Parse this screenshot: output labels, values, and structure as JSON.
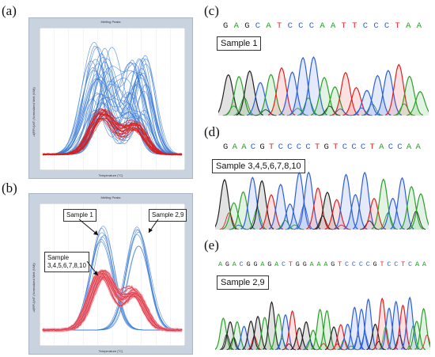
{
  "panels": {
    "a": {
      "label": "(a)",
      "plot_title": "Melting Peaks",
      "xlabel": "Temperature (°C)",
      "ylabel": "-d(RFU)/dT (Normalized Melt (NM))"
    },
    "b": {
      "label": "(b)",
      "plot_title": "Melting Peaks",
      "xlabel": "Temperature (°C)",
      "ylabel": "-d(RFU)/dT (Normalized Melt (NM))",
      "callouts": {
        "sample1": "Sample 1",
        "sample29": "Sample 2,9",
        "sample_other_line1": "Sample",
        "sample_other_line2": "3,4,5,6,7,8,10"
      }
    },
    "c": {
      "label": "(c)",
      "sequence": "GAGCATCCCAATTCCCTAA",
      "sample": "Sample 1"
    },
    "d": {
      "label": "(d)",
      "sequence": "GAACGTCCCCTGTCCCTACCAA",
      "sample": "Sample 3,4,5,6,7,8,10"
    },
    "e": {
      "label": "(e)",
      "sequence": "AGACGGAGACTGGAAAGTCCCCGTCCTCAA",
      "sample": "Sample 2,9"
    }
  },
  "base_colors": {
    "A": "#2aa02a",
    "C": "#2b5fd9",
    "G": "#222222",
    "T": "#e02020"
  },
  "curve_colors": {
    "blue": "#3a7bd5",
    "red": "#d62020",
    "pink": "#f08aa0"
  }
}
